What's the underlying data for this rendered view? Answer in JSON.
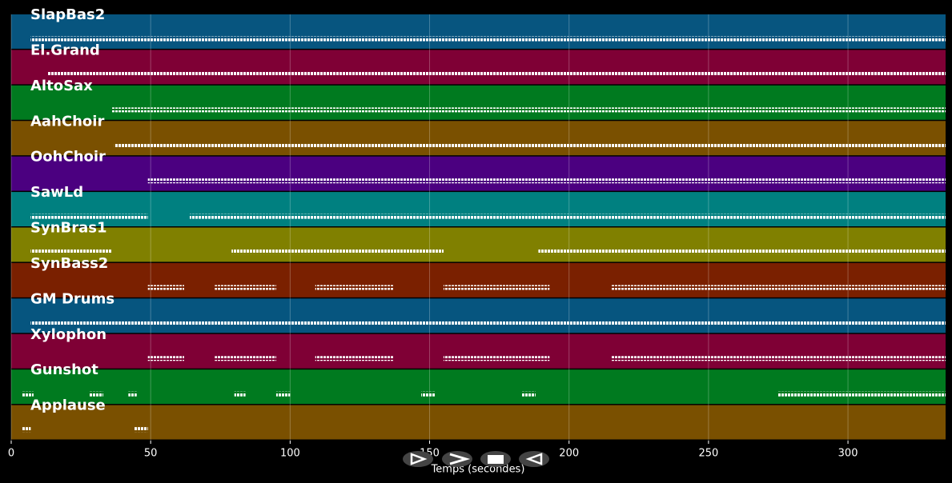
{
  "chart_data": {
    "type": "pianoroll",
    "xlabel": "Temps (secondes)",
    "xlim": [
      0,
      335
    ],
    "xticks": [
      0,
      50,
      100,
      150,
      200,
      250,
      300
    ],
    "grid": true,
    "tracks": [
      {
        "name": "SlapBas2",
        "color": "#07557f",
        "segments": [
          [
            7,
            335
          ]
        ]
      },
      {
        "name": "El.Grand",
        "color": "#7f0035",
        "segments": [
          [
            13,
            335
          ]
        ]
      },
      {
        "name": "AltoSax",
        "color": "#007a1f",
        "segments": [
          [
            36,
            335
          ]
        ]
      },
      {
        "name": "AahChoir",
        "color": "#7a5000",
        "segments": [
          [
            37,
            335
          ]
        ]
      },
      {
        "name": "OohChoir",
        "color": "#4b0080",
        "segments": [
          [
            49,
            335
          ]
        ]
      },
      {
        "name": "SawLd",
        "color": "#008080",
        "segments": [
          [
            7,
            49
          ],
          [
            64,
            335
          ]
        ]
      },
      {
        "name": "SynBras1",
        "color": "#808000",
        "segments": [
          [
            7,
            36
          ],
          [
            79,
            155
          ],
          [
            189,
            335
          ]
        ]
      },
      {
        "name": "SynBass2",
        "color": "#7a2000",
        "segments": [
          [
            49,
            62
          ],
          [
            73,
            95
          ],
          [
            109,
            137
          ],
          [
            155,
            193
          ],
          [
            215,
            335
          ]
        ]
      },
      {
        "name": "GM Drums",
        "color": "#06557f",
        "segments": [
          [
            7,
            335
          ]
        ]
      },
      {
        "name": "Xylophon",
        "color": "#7f0035",
        "segments": [
          [
            49,
            62
          ],
          [
            73,
            95
          ],
          [
            109,
            137
          ],
          [
            155,
            193
          ],
          [
            215,
            335
          ]
        ]
      },
      {
        "name": "Gunshot",
        "color": "#007a1f",
        "segments": [
          [
            4,
            8
          ],
          [
            28,
            33
          ],
          [
            42,
            45
          ],
          [
            80,
            84
          ],
          [
            95,
            100
          ],
          [
            147,
            152
          ],
          [
            183,
            188
          ],
          [
            275,
            335
          ]
        ]
      },
      {
        "name": "Applause",
        "color": "#7a5000",
        "segments": [
          [
            4,
            7
          ],
          [
            44,
            49
          ]
        ]
      }
    ]
  }
}
